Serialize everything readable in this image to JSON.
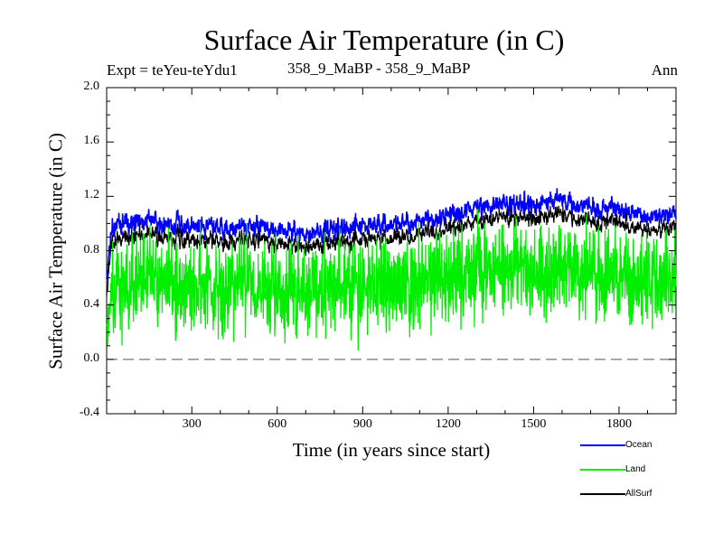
{
  "chart_data": {
    "type": "line",
    "title": "Surface Air Temperature (in C)",
    "subtitle_left": "Expt = teYeu-teYdu1",
    "subtitle_center": "358_9_MaBP - 358_9_MaBP",
    "subtitle_right": "Ann",
    "xlabel": "Time (in years since start)",
    "ylabel": "Surface Air Temperature (in C)",
    "xlim": [
      1,
      2000
    ],
    "ylim": [
      -0.4,
      2.0
    ],
    "xticks": [
      300,
      600,
      900,
      1200,
      1500,
      1800
    ],
    "xtick_labels": [
      "300",
      "600",
      "900",
      "1200",
      "1500",
      "1800"
    ],
    "yticks": [
      -0.4,
      0.0,
      0.4,
      0.8,
      1.2,
      1.6,
      2.0
    ],
    "ytick_labels": [
      "-0.4",
      "0.0",
      "0.4",
      "0.8",
      "1.2",
      "1.6",
      "2.0"
    ],
    "reference_line": {
      "y": 0.0,
      "style": "dashed"
    },
    "series": [
      {
        "name": "Ocean",
        "color": "#0000ff",
        "x": [
          1,
          10,
          20,
          50,
          100,
          200,
          300,
          400,
          500,
          600,
          700,
          800,
          900,
          1000,
          1100,
          1200,
          1300,
          1400,
          1500,
          1600,
          1700,
          1800,
          1900,
          2000
        ],
        "values": [
          0.55,
          0.8,
          0.95,
          1.0,
          1.02,
          1.0,
          0.98,
          0.97,
          0.98,
          0.95,
          0.93,
          0.96,
          0.98,
          1.0,
          1.02,
          1.05,
          1.12,
          1.15,
          1.13,
          1.18,
          1.12,
          1.1,
          1.05,
          1.08
        ]
      },
      {
        "name": "Land",
        "color": "#00ee00",
        "x": [
          1,
          10,
          20,
          50,
          100,
          200,
          300,
          400,
          500,
          600,
          700,
          800,
          900,
          1000,
          1100,
          1200,
          1300,
          1400,
          1500,
          1600,
          1700,
          1800,
          1900,
          2000
        ],
        "values": [
          0.05,
          0.4,
          0.5,
          0.55,
          0.6,
          0.58,
          0.55,
          0.54,
          0.55,
          0.5,
          0.48,
          0.52,
          0.55,
          0.56,
          0.58,
          0.6,
          0.65,
          0.68,
          0.66,
          0.7,
          0.65,
          0.62,
          0.6,
          0.62
        ]
      },
      {
        "name": "AllSurf",
        "color": "#000000",
        "x": [
          1,
          10,
          20,
          50,
          100,
          200,
          300,
          400,
          500,
          600,
          700,
          800,
          900,
          1000,
          1100,
          1200,
          1300,
          1400,
          1500,
          1600,
          1700,
          1800,
          1900,
          2000
        ],
        "values": [
          0.45,
          0.72,
          0.85,
          0.9,
          0.92,
          0.9,
          0.88,
          0.87,
          0.88,
          0.85,
          0.83,
          0.86,
          0.88,
          0.9,
          0.92,
          0.95,
          1.02,
          1.05,
          1.03,
          1.08,
          1.02,
          1.0,
          0.95,
          0.98
        ]
      }
    ],
    "legend_position": "bottom-right"
  }
}
